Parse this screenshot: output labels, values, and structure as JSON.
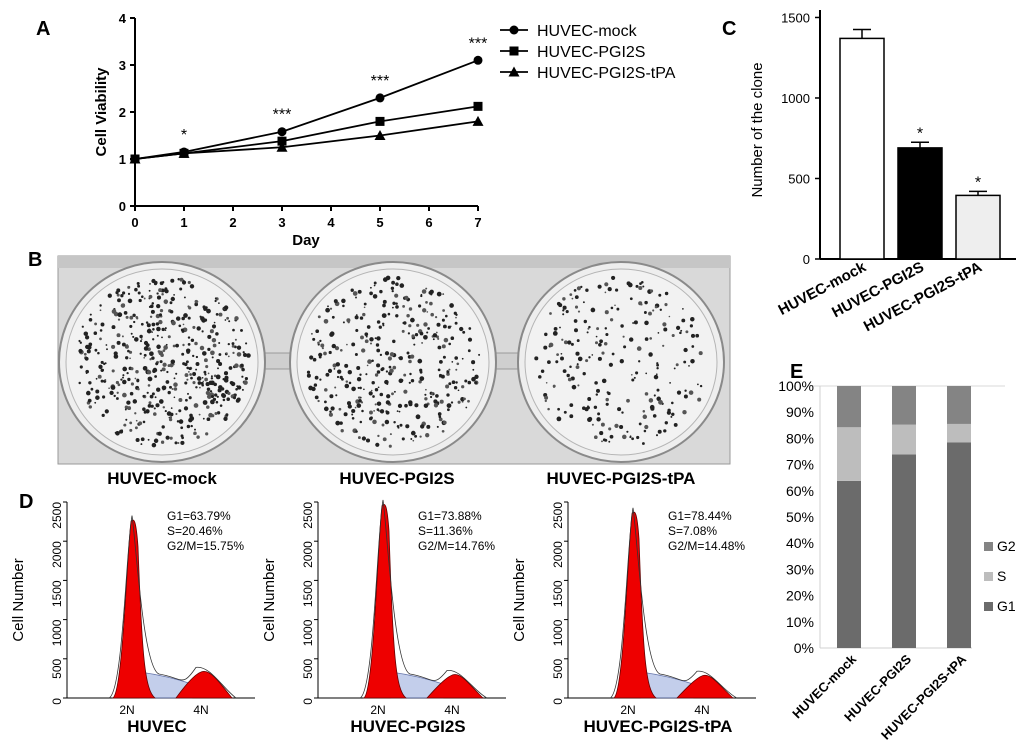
{
  "panel_letters": {
    "a": "A",
    "b": "B",
    "c": "C",
    "d": "D",
    "e": "E"
  },
  "chart_data": [
    {
      "id": "A",
      "type": "line",
      "title": "",
      "xlabel": "Day",
      "ylabel": "Cell Viability",
      "xlim": [
        0,
        7
      ],
      "ylim": [
        0,
        4
      ],
      "xticks": [
        0,
        1,
        2,
        3,
        4,
        5,
        6,
        7
      ],
      "yticks": [
        0,
        1,
        2,
        3,
        4
      ],
      "x": [
        0,
        1,
        3,
        5,
        7
      ],
      "series": [
        {
          "name": "HUVEC-mock",
          "marker": "circle",
          "values": [
            1.0,
            1.15,
            1.58,
            2.3,
            3.1
          ]
        },
        {
          "name": "HUVEC-PGI2S",
          "marker": "square",
          "values": [
            1.0,
            1.12,
            1.38,
            1.8,
            2.12
          ]
        },
        {
          "name": "HUVEC-PGI2S-tPA",
          "marker": "triangle",
          "values": [
            1.0,
            1.12,
            1.25,
            1.5,
            1.8
          ]
        }
      ],
      "annotations": [
        {
          "x": 1,
          "text": "*"
        },
        {
          "x": 3,
          "text": "***"
        },
        {
          "x": 5,
          "text": "***"
        },
        {
          "x": 7,
          "text": "***"
        }
      ],
      "legend_position": "top-right"
    },
    {
      "id": "C",
      "type": "bar",
      "title": "",
      "ylabel": "Number of the clone",
      "ylim": [
        0,
        1500
      ],
      "yticks": [
        0,
        500,
        1000,
        1500
      ],
      "categories": [
        "HUVEC-mock",
        "HUVEC-PGI2S",
        "HUVEC-PGI2S-tPA"
      ],
      "values": [
        1370,
        690,
        395
      ],
      "errors": [
        55,
        35,
        25
      ],
      "colors": [
        "#ffffff",
        "#000000",
        "#eeeeee"
      ],
      "annotations": [
        "",
        "*",
        "*"
      ]
    },
    {
      "id": "E",
      "type": "bar",
      "stacked": true,
      "ylim": [
        0,
        100
      ],
      "yticks": [
        "0%",
        "10%",
        "20%",
        "30%",
        "40%",
        "50%",
        "60%",
        "70%",
        "80%",
        "90%",
        "100%"
      ],
      "categories": [
        "HUVEC-mock",
        "HUVEC-PGI2S",
        "HUVEC-PGI2S-tPA"
      ],
      "series": [
        {
          "name": "G1",
          "color": "#6b6b6b",
          "values": [
            63.79,
            73.88,
            78.44
          ]
        },
        {
          "name": "S",
          "color": "#bdbdbd",
          "values": [
            20.46,
            11.36,
            7.08
          ]
        },
        {
          "name": "G2",
          "color": "#848484",
          "values": [
            15.75,
            14.76,
            14.48
          ]
        }
      ],
      "legend_order": [
        "G2",
        "S",
        "G1"
      ],
      "legend_position": "right"
    },
    {
      "id": "D",
      "type": "area",
      "ylabel": "Cell Number",
      "ylim": [
        0,
        2500
      ],
      "yticks": [
        0,
        500,
        1000,
        1500,
        2000,
        2500
      ],
      "xticks": [
        "2N",
        "4N"
      ],
      "panels": [
        {
          "name": "HUVEC",
          "stats": [
            "G1=63.79%",
            "S=20.46%",
            "G2/M=15.75%"
          ],
          "g1_peak": 2250,
          "g2_peak": 340
        },
        {
          "name": "HUVEC-PGI2S",
          "stats": [
            "G1=73.88%",
            "S=11.36%",
            "G2/M=14.76%"
          ],
          "g1_peak": 2450,
          "g2_peak": 300
        },
        {
          "name": "HUVEC-PGI2S-tPA",
          "stats": [
            "G1=78.44%",
            "S=7.08%",
            "G2/M=14.48%"
          ],
          "g1_peak": 2350,
          "g2_peak": 290
        }
      ]
    }
  ],
  "plates": {
    "labels": [
      "HUVEC-mock",
      "HUVEC-PGI2S",
      "HUVEC-PGI2S-tPA"
    ],
    "colony_density": [
      "high",
      "medium",
      "low"
    ]
  }
}
